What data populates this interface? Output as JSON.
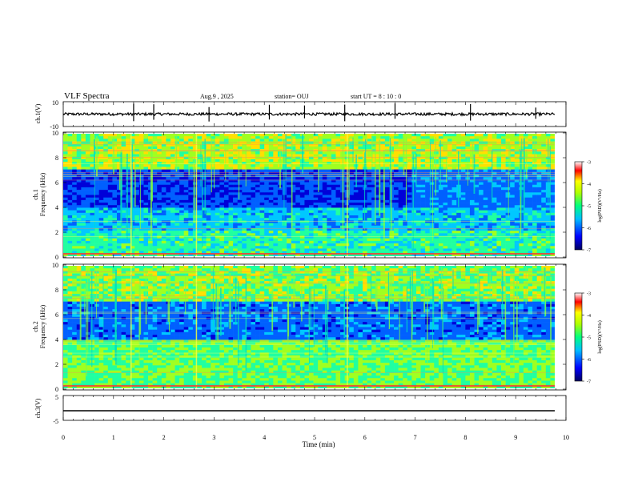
{
  "header": {
    "title": "VLF Spectra",
    "date": "Aug.9 , 2025",
    "station": "station= OUJ",
    "start": "start UT = 8 : 10 : 0"
  },
  "chart_data": [
    {
      "type": "line",
      "name": "ch1-waveform",
      "ylabel": "ch.1(V)",
      "ylim": [
        -10,
        10
      ],
      "yticks": [
        "10",
        "-10"
      ],
      "xlim": [
        0,
        10
      ],
      "baseline": 0,
      "note_spikes_at_min": [
        1.4,
        1.8,
        2.9,
        4.1,
        4.8,
        5.6,
        6.6,
        8.1,
        9.4
      ]
    },
    {
      "type": "heatmap",
      "name": "ch1-spectrogram",
      "ylabel": "ch.1\nFrequency (kHz)",
      "ylabel_lines": [
        "ch.1",
        "Frequency (kHz)"
      ],
      "xlim": [
        0,
        10
      ],
      "ylim": [
        0,
        10
      ],
      "yticks": [
        "0",
        "2",
        "4",
        "6",
        "8",
        "10"
      ],
      "colorbar": {
        "label": "log(PSD)(V²/Hz)",
        "range": [
          -7,
          -3
        ],
        "ticks": [
          "-3",
          "-4",
          "-5",
          "-6",
          "-7"
        ]
      }
    },
    {
      "type": "heatmap",
      "name": "ch2-spectrogram",
      "ylabel": "ch.2\nFrequency (kHz)",
      "ylabel_lines": [
        "ch.2",
        "Frequency (kHz)"
      ],
      "xlim": [
        0,
        10
      ],
      "ylim": [
        0,
        10
      ],
      "yticks": [
        "0",
        "2",
        "4",
        "6",
        "8",
        "10"
      ],
      "colorbar": {
        "label": "log(PSD)(V²/Hz)",
        "range": [
          -7,
          -3
        ],
        "ticks": [
          "-3",
          "-4",
          "-5",
          "-6",
          "-7"
        ]
      }
    },
    {
      "type": "line",
      "name": "ch3-waveform",
      "ylabel": "ch.3(V)",
      "ylim": [
        -5,
        5
      ],
      "yticks": [
        "5",
        "0",
        "-5"
      ],
      "xlim": [
        0,
        10
      ],
      "baseline": -1.4
    }
  ],
  "x_axis": {
    "label": "Time (min)",
    "ticks": [
      "0",
      "1",
      "2",
      "3",
      "4",
      "5",
      "6",
      "7",
      "8",
      "9",
      "10"
    ]
  },
  "colors": {
    "colormap": [
      "#000080",
      "#0000ff",
      "#00c0ff",
      "#00ff80",
      "#ffff00",
      "#ff0000",
      "#8b0000"
    ]
  }
}
